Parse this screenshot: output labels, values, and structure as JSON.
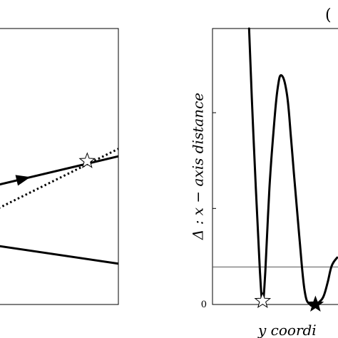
{
  "chart_data": [
    {
      "panel": "left",
      "type": "line",
      "title": "",
      "xlabel": "",
      "ylabel": "",
      "xlim": [
        0,
        1
      ],
      "ylim": [
        0,
        1
      ],
      "series": [
        {
          "style": "solid",
          "x": [
            0,
            1
          ],
          "y": [
            0.434,
            0.537
          ]
        },
        {
          "style": "dotted",
          "x": [
            0,
            1
          ],
          "y": [
            0.349,
            0.564
          ]
        },
        {
          "style": "solid",
          "x": [
            0,
            1
          ],
          "y": [
            0.212,
            0.148
          ]
        }
      ],
      "markers": [
        {
          "shape": "open-star",
          "x": 0.74,
          "y": 0.52
        },
        {
          "shape": "arrowhead",
          "x": 0.2,
          "y": 0.455
        }
      ]
    },
    {
      "panel": "right",
      "type": "line",
      "panel_label": "(",
      "title": "",
      "xlabel": "y coordi",
      "ylabel": "Δ :  x − axis distance",
      "xlim": [
        0,
        1
      ],
      "ylim": [
        0,
        1
      ],
      "yticks": [
        {
          "value": 0,
          "label": "0"
        },
        {
          "value": 0.348,
          "label": ""
        },
        {
          "value": 0.695,
          "label": ""
        }
      ],
      "reference_line_y": 0.136,
      "series": [
        {
          "style": "solid",
          "x": [
            0.27,
            0.29,
            0.32,
            0.35,
            0.37,
            0.39,
            0.42,
            0.45,
            0.48,
            0.51,
            0.55,
            0.58,
            0.6,
            0.64,
            0.68,
            0.72,
            0.76,
            0.79,
            0.82,
            0.85,
            0.88,
            0.92
          ],
          "y": [
            1.0,
            0.75,
            0.42,
            0.12,
            0.013,
            0.12,
            0.42,
            0.625,
            0.78,
            0.83,
            0.76,
            0.6,
            0.48,
            0.25,
            0.05,
            0.0,
            0.0,
            0.01,
            0.03,
            0.08,
            0.14,
            0.17
          ]
        }
      ],
      "markers": [
        {
          "shape": "open-star",
          "x": 0.37,
          "y": 0.013
        },
        {
          "shape": "filled-star",
          "x": 0.76,
          "y": 0.0
        }
      ]
    }
  ]
}
